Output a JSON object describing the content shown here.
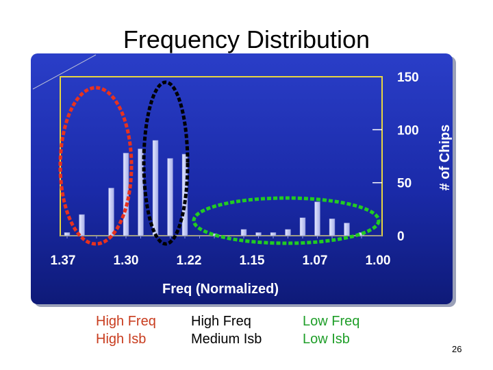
{
  "slide": {
    "title": "Frequency Distribution",
    "page_number": "26"
  },
  "captions": [
    {
      "line1": "High Freq",
      "line2": "High Isb",
      "color": "#c83c1e"
    },
    {
      "line1": "High Freq",
      "line2": "Medium Isb",
      "color": "#000000"
    },
    {
      "line1": "Low Freq",
      "line2": "Low Isb",
      "color": "#1e9e28"
    }
  ],
  "chart_data": {
    "type": "bar",
    "title": "",
    "xlabel": "Freq (Normalized)",
    "ylabel": "# of Chips",
    "ylim": [
      0,
      150
    ],
    "yticks": [
      0,
      50,
      100,
      150
    ],
    "y_axis_side": "right",
    "x_tick_labels": [
      "1.37",
      "1.30",
      "1.22",
      "1.15",
      "1.07",
      "1.00"
    ],
    "bin_count": 21,
    "values": [
      3,
      20,
      0,
      45,
      78,
      82,
      90,
      73,
      77,
      0,
      2,
      0,
      6,
      3,
      3,
      6,
      17,
      32,
      16,
      12,
      3
    ],
    "grid": false,
    "legend": "none",
    "colors": {
      "panel_background": "#1a2aa8",
      "plot_border": "#e8d640",
      "bar_fill": "#c8cef4",
      "axis_text": "#ffffff",
      "oval_high_freq_high_isb": "#e8321e",
      "oval_high_freq_medium_isb": "#000000",
      "oval_low_freq_low_isb": "#22cc22"
    }
  }
}
